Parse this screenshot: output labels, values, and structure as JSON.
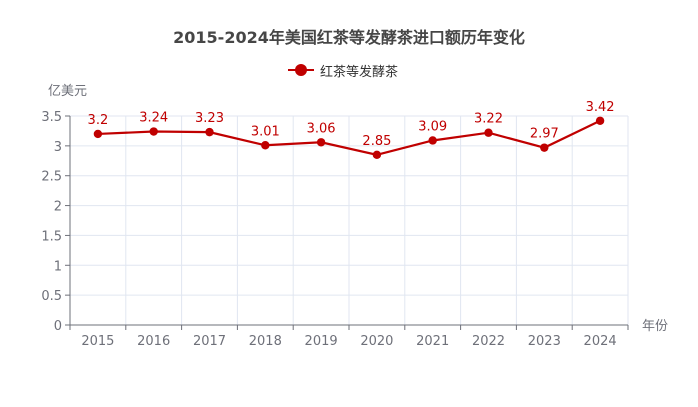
{
  "chart_data": {
    "type": "line",
    "title": "2015-2024年美国红茶等发酵茶进口额历年变化",
    "xlabel": "年份",
    "ylabel": "亿美元",
    "categories": [
      "2015",
      "2016",
      "2017",
      "2018",
      "2019",
      "2020",
      "2021",
      "2022",
      "2023",
      "2024"
    ],
    "series": [
      {
        "name": "红茶等发酵茶",
        "color": "#c00000",
        "values": [
          3.2,
          3.24,
          3.23,
          3.01,
          3.06,
          2.85,
          3.09,
          3.22,
          2.97,
          3.42
        ],
        "labels": [
          "3.2",
          "3.24",
          "3.23",
          "3.01",
          "3.06",
          "2.85",
          "3.09",
          "3.22",
          "2.97",
          "3.42"
        ]
      }
    ],
    "ylim": [
      0,
      3.5
    ],
    "yticks": [
      "0",
      "0.5",
      "1",
      "1.5",
      "2",
      "2.5",
      "3",
      "3.5"
    ],
    "grid": true,
    "legend_position": "top"
  }
}
